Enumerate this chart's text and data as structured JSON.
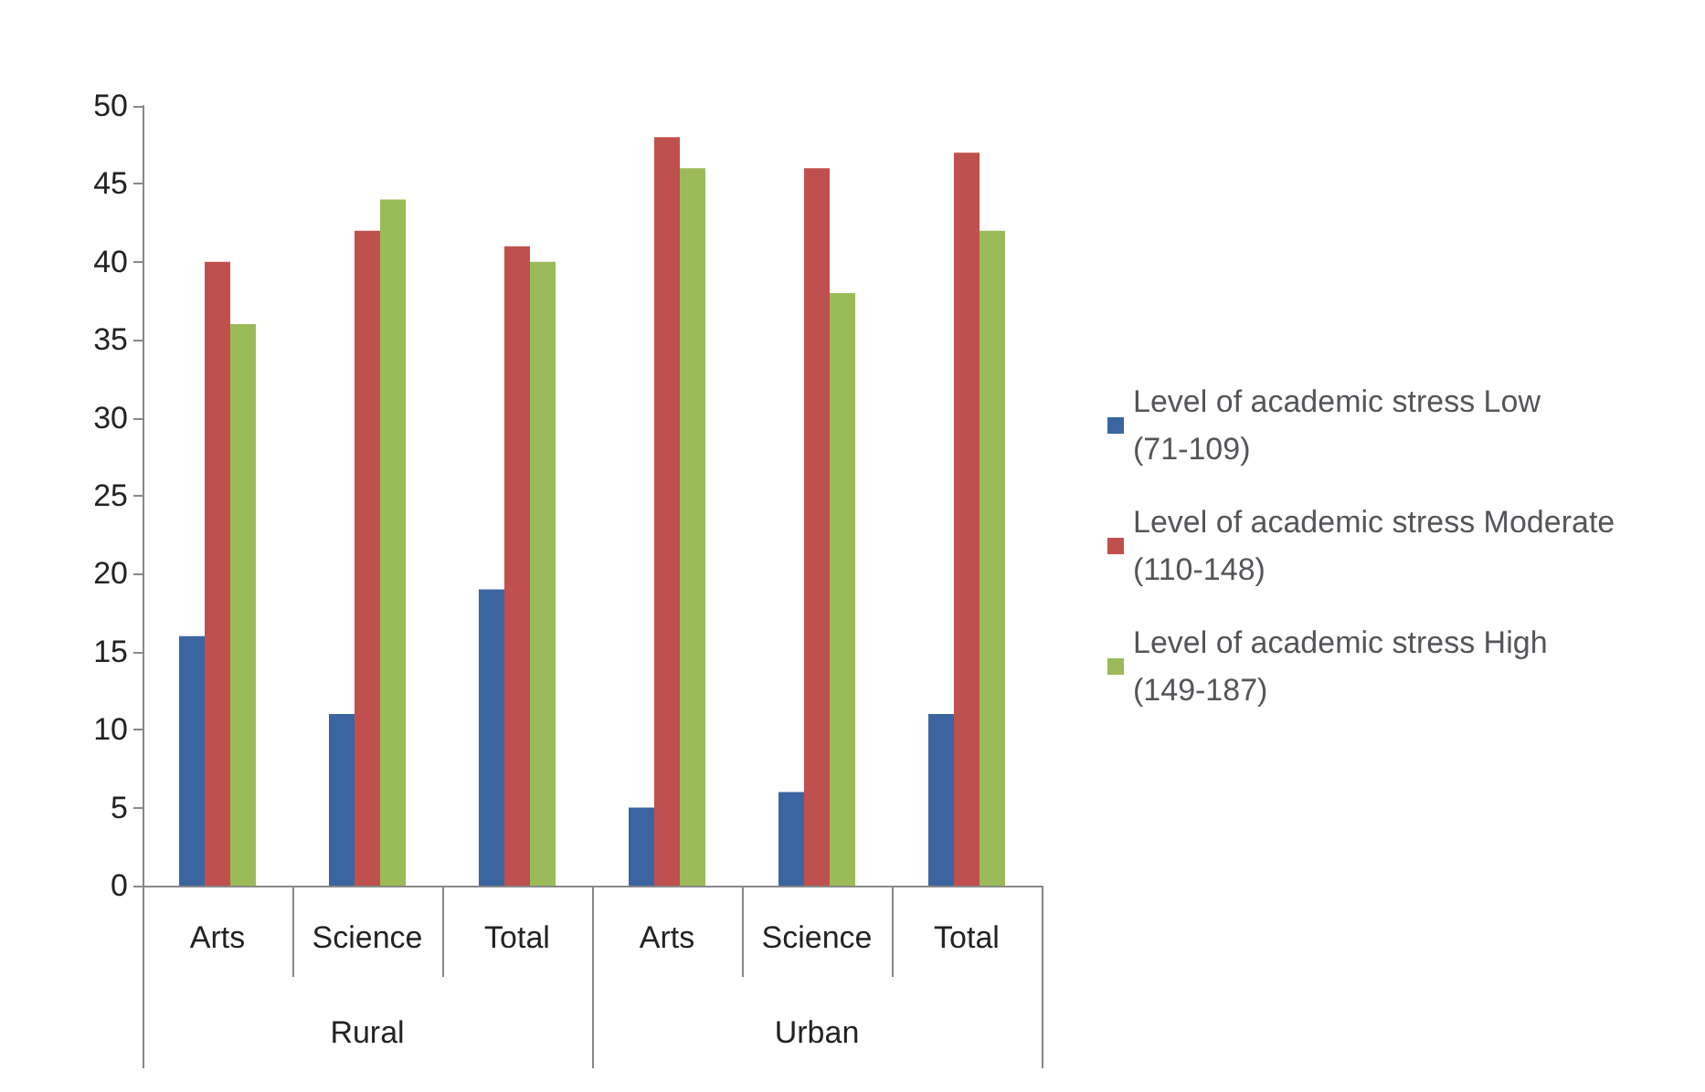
{
  "chart_data": {
    "type": "bar",
    "categories": [
      "Arts",
      "Science",
      "Total",
      "Arts",
      "Science",
      "Total"
    ],
    "annotations": [
      "Rural",
      "Urban"
    ],
    "series": [
      {
        "name": "Level of academic stress Low (71-109)",
        "color": "#3b65a0",
        "values": [
          16,
          11,
          19,
          5,
          6,
          11
        ]
      },
      {
        "name": "Level of academic stress Moderate (110-148)",
        "color": "#c0504d",
        "values": [
          40,
          42,
          41,
          48,
          46,
          47
        ]
      },
      {
        "name": "Level of academic stress High (149-187)",
        "color": "#9bbb59",
        "values": [
          36,
          44,
          40,
          46,
          38,
          42
        ]
      }
    ],
    "ylim": [
      0,
      50
    ],
    "yticks": [
      0,
      5,
      10,
      15,
      20,
      25,
      30,
      35,
      40,
      45,
      50
    ],
    "grid": false,
    "legend": "right"
  }
}
